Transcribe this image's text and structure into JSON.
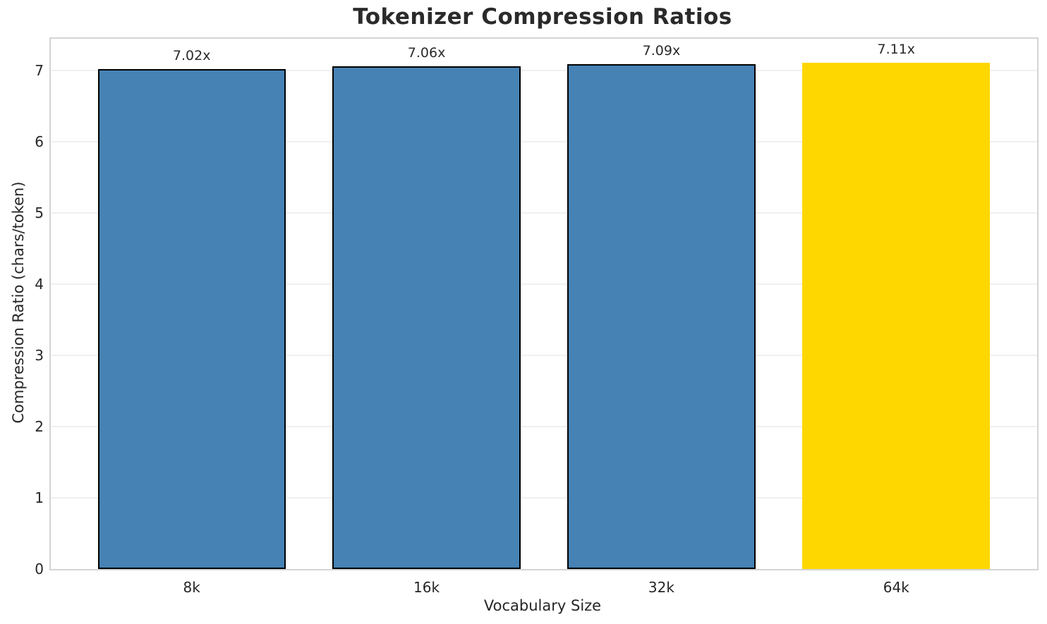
{
  "title": "Tokenizer Compression Ratios",
  "xlabel": "Vocabulary Size",
  "ylabel": "Compression Ratio (chars/token)",
  "chart_data": {
    "type": "bar",
    "title": "Tokenizer Compression Ratios",
    "xlabel": "Vocabulary Size",
    "ylabel": "Compression Ratio (chars/token)",
    "categories": [
      "8k",
      "16k",
      "32k",
      "64k"
    ],
    "values": [
      7.02,
      7.06,
      7.09,
      7.11
    ],
    "bar_labels": [
      "7.02x",
      "7.06x",
      "7.09x",
      "7.11x"
    ],
    "yticks": [
      0,
      1,
      2,
      3,
      4,
      5,
      6,
      7
    ],
    "ylim": [
      0,
      7.45
    ],
    "grid": "horizontal-on",
    "legend_position": "none",
    "bar_colors": [
      "#4682b4",
      "#4682b4",
      "#4682b4",
      "#ffd700"
    ],
    "bar_edge_colors": [
      "#000000",
      "#000000",
      "#000000",
      "none"
    ],
    "highlight_index": 3
  },
  "colors": {
    "bar_blue": "#4682b4",
    "bar_gold": "#ffd700",
    "bar_edge": "#000000",
    "gridline": "#f0f0f0",
    "spine": "#d4d4d4",
    "text": "#262626",
    "background": "#ffffff"
  }
}
